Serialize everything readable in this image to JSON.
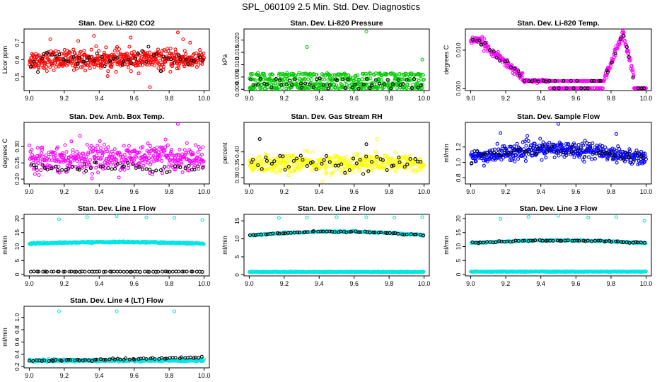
{
  "page_title": "SPL_060109  2.5 Min. Std. Dev. Diagnostics",
  "chart_data": [
    {
      "type": "scatter",
      "title": "Stan. Dev. Li-820 CO2",
      "xlabel": "",
      "ylabel": "Licor ppm",
      "xlim": [
        8.97,
        10.03
      ],
      "ylim": [
        0.42,
        0.78
      ],
      "xticks": [
        "9.0",
        "9.2",
        "9.4",
        "9.6",
        "9.8",
        "10.0"
      ],
      "yticks": [
        "0.5",
        "0.6",
        "0.7"
      ],
      "series": [
        {
          "color": "#ff0000",
          "x_range": [
            9.0,
            10.0
          ],
          "count": 520,
          "profile": "flat",
          "center": 0.6,
          "spread": 0.055,
          "outliers": [
            [
              9.12,
              0.72
            ],
            [
              9.28,
              0.71
            ],
            [
              9.37,
              0.74
            ],
            [
              9.58,
              0.73
            ],
            [
              9.69,
              0.44
            ],
            [
              9.85,
              0.76
            ],
            [
              9.88,
              0.72
            ],
            [
              9.92,
              0.7
            ]
          ]
        },
        {
          "color": "#000000",
          "x_range": [
            9.0,
            10.0
          ],
          "count": 50,
          "profile": "flat",
          "center": 0.6,
          "spread": 0.05,
          "outliers": []
        }
      ]
    },
    {
      "type": "scatter",
      "title": "Stan. Dev. Li-820 Pressure",
      "xlabel": "",
      "ylabel": "kPa",
      "xlim": [
        8.97,
        10.03
      ],
      "ylim": [
        -0.0005,
        0.0245
      ],
      "xticks": [
        "9.0",
        "9.2",
        "9.4",
        "9.6",
        "9.8",
        "10.0"
      ],
      "yticks": [
        "0.000",
        "0.005",
        "0.010",
        "0.015",
        "0.020"
      ],
      "series": [
        {
          "color": "#00cc00",
          "x_range": [
            9.0,
            10.0
          ],
          "count": 480,
          "profile": "levels",
          "levels": [
            0.0005,
            0.002,
            0.004,
            0.006
          ],
          "center": 0.003,
          "spread": 0.002,
          "outliers": [
            [
              9.33,
              0.0172
            ],
            [
              9.67,
              0.0235
            ],
            [
              9.99,
              0.0121
            ]
          ]
        },
        {
          "color": "#000000",
          "x_range": [
            9.0,
            10.0
          ],
          "count": 50,
          "profile": "levels",
          "levels": [
            0.0005,
            0.002,
            0.004
          ],
          "center": 0.002,
          "spread": 0.0015,
          "outliers": []
        }
      ]
    },
    {
      "type": "scatter",
      "title": "Stan. Dev. Li-820 Temp.",
      "xlabel": "",
      "ylabel": "degrees C",
      "xlim": [
        8.97,
        10.03
      ],
      "ylim": [
        -0.0005,
        0.0155
      ],
      "xticks": [
        "9.0",
        "9.2",
        "9.4",
        "9.6",
        "9.8",
        "10.0"
      ],
      "yticks": [
        "0.000",
        "0.010"
      ],
      "series": [
        {
          "color": "#ff00ff",
          "x_range": [
            9.0,
            10.0
          ],
          "count": 420,
          "profile": "temp",
          "center": 0.005,
          "spread": 0.0008,
          "outliers": []
        },
        {
          "color": "#000000",
          "x_range": [
            9.0,
            10.0
          ],
          "count": 50,
          "profile": "temp",
          "center": 0.005,
          "spread": 0.0008,
          "outliers": []
        }
      ]
    },
    {
      "type": "scatter",
      "title": "Stan. Dev. Amb. Box Temp.",
      "xlabel": "",
      "ylabel": "degrees C",
      "xlim": [
        8.97,
        10.03
      ],
      "ylim": [
        0.185,
        0.375
      ],
      "xticks": [
        "9.0",
        "9.2",
        "9.4",
        "9.6",
        "9.8",
        "10.0"
      ],
      "yticks": [
        "0.20",
        "0.25",
        "0.30"
      ],
      "series": [
        {
          "color": "#ff00ff",
          "x_range": [
            9.0,
            10.0
          ],
          "count": 420,
          "profile": "flat",
          "center": 0.265,
          "spread": 0.04,
          "outliers": [
            [
              9.85,
              0.37
            ]
          ]
        },
        {
          "color": "#000000",
          "x_range": [
            9.0,
            10.0
          ],
          "count": 50,
          "profile": "flat",
          "center": 0.235,
          "spread": 0.015,
          "outliers": []
        }
      ]
    },
    {
      "type": "scatter",
      "title": "Stan. Dev. Gas Stream RH",
      "xlabel": "",
      "ylabel": "percent",
      "xlim": [
        8.97,
        10.03
      ],
      "ylim": [
        0.275,
        0.515
      ],
      "xticks": [
        "9.0",
        "9.2",
        "9.4",
        "9.6",
        "9.8",
        "10.0"
      ],
      "yticks": [
        "0.30",
        "0.35",
        "0.40"
      ],
      "series": [
        {
          "color": "#ffff00",
          "x_range": [
            9.0,
            10.0
          ],
          "count": 420,
          "profile": "flat",
          "center": 0.355,
          "spread": 0.035,
          "outliers": [
            [
              9.42,
              0.285
            ],
            [
              9.73,
              0.45
            ]
          ]
        },
        {
          "color": "#000000",
          "x_range": [
            9.0,
            10.0
          ],
          "count": 50,
          "profile": "flat",
          "center": 0.36,
          "spread": 0.035,
          "outliers": [
            [
              9.06,
              0.45
            ],
            [
              9.67,
              0.43
            ]
          ]
        }
      ]
    },
    {
      "type": "scatter",
      "title": "Stan. Dev. Sample Flow",
      "xlabel": "",
      "ylabel": "ml/min",
      "xlim": [
        8.97,
        10.03
      ],
      "ylim": [
        0.72,
        1.52
      ],
      "xticks": [
        "9.0",
        "9.2",
        "9.4",
        "9.6",
        "9.8",
        "10.0"
      ],
      "yticks": [
        "0.8",
        "1.0",
        "1.2"
      ],
      "series": [
        {
          "color": "#0000ff",
          "x_range": [
            9.0,
            10.0
          ],
          "count": 460,
          "profile": "hump",
          "center": 1.05,
          "spread": 0.1,
          "amplitude": 0.12,
          "outliers": [
            [
              9.17,
              1.38
            ],
            [
              9.5,
              1.5
            ],
            [
              9.83,
              1.37
            ]
          ]
        },
        {
          "color": "#000000",
          "x_range": [
            9.0,
            10.0
          ],
          "count": 50,
          "profile": "hump",
          "center": 1.05,
          "spread": 0.08,
          "amplitude": 0.12,
          "outliers": []
        }
      ]
    },
    {
      "type": "scatter",
      "title": "Stan. Dev. Line 1 Flow",
      "xlabel": "",
      "ylabel": "ml/min",
      "xlim": [
        8.97,
        10.03
      ],
      "ylim": [
        -0.5,
        21.5
      ],
      "xticks": [
        "9.0",
        "9.2",
        "9.4",
        "9.6",
        "9.8",
        "10.0"
      ],
      "yticks": [
        "0",
        "5",
        "10",
        "15",
        "20"
      ],
      "series": [
        {
          "color": "#00e5e5",
          "x_range": [
            9.0,
            10.0
          ],
          "count": 380,
          "profile": "hump",
          "center": 11.0,
          "spread": 0.25,
          "amplitude": 0.6,
          "outliers": [
            [
              9.17,
              19.7
            ],
            [
              9.33,
              20.5
            ],
            [
              9.5,
              20.9
            ],
            [
              9.67,
              20.4
            ],
            [
              9.83,
              20.2
            ],
            [
              9.99,
              19.5
            ]
          ]
        },
        {
          "color": "#000000",
          "x_range": [
            9.0,
            10.0
          ],
          "count": 60,
          "profile": "flat",
          "center": 1.0,
          "spread": 0.08,
          "outliers": []
        }
      ]
    },
    {
      "type": "scatter",
      "title": "Stan. Dev. Line 2 Flow",
      "xlabel": "",
      "ylabel": "ml/min",
      "xlim": [
        8.97,
        10.03
      ],
      "ylim": [
        -0.3,
        16.8
      ],
      "xticks": [
        "9.0",
        "9.2",
        "9.4",
        "9.6",
        "9.8",
        "10.0"
      ],
      "yticks": [
        "0",
        "5",
        "10",
        "15"
      ],
      "series": [
        {
          "color": "#00e5e5",
          "x_range": [
            9.0,
            10.0
          ],
          "count": 380,
          "profile": "flat",
          "center": 0.8,
          "spread": 0.1,
          "outliers": [
            [
              9.17,
              15.8
            ],
            [
              9.33,
              15.9
            ],
            [
              9.5,
              16.0
            ],
            [
              9.67,
              16.0
            ],
            [
              9.83,
              15.9
            ],
            [
              9.99,
              16.0
            ]
          ]
        },
        {
          "color": "#00e5e5",
          "x_range": [
            9.0,
            10.0
          ],
          "count": 200,
          "profile": "hump",
          "center": 11.0,
          "spread": 0.2,
          "amplitude": 1.0,
          "outliers": []
        },
        {
          "color": "#000000",
          "x_range": [
            9.0,
            10.0
          ],
          "count": 60,
          "profile": "hump",
          "center": 11.0,
          "spread": 0.2,
          "amplitude": 1.0,
          "outliers": []
        }
      ]
    },
    {
      "type": "scatter",
      "title": "Stan. Dev. Line 3 Flow",
      "xlabel": "",
      "ylabel": "ml/min",
      "xlim": [
        8.97,
        10.03
      ],
      "ylim": [
        -0.5,
        21.5
      ],
      "xticks": [
        "9.0",
        "9.2",
        "9.4",
        "9.6",
        "9.8",
        "10.0"
      ],
      "yticks": [
        "0",
        "5",
        "10",
        "15",
        "20"
      ],
      "series": [
        {
          "color": "#00e5e5",
          "x_range": [
            9.0,
            10.0
          ],
          "count": 380,
          "profile": "flat",
          "center": 1.0,
          "spread": 0.12,
          "outliers": [
            [
              9.17,
              19.9
            ],
            [
              9.33,
              20.6
            ],
            [
              9.5,
              21.0
            ],
            [
              9.67,
              20.4
            ],
            [
              9.83,
              20.5
            ],
            [
              9.99,
              19.2
            ]
          ]
        },
        {
          "color": "#00e5e5",
          "x_range": [
            9.0,
            10.0
          ],
          "count": 200,
          "profile": "hump",
          "center": 11.2,
          "spread": 0.25,
          "amplitude": 1.0,
          "outliers": []
        },
        {
          "color": "#000000",
          "x_range": [
            9.0,
            10.0
          ],
          "count": 60,
          "profile": "hump",
          "center": 11.2,
          "spread": 0.25,
          "amplitude": 1.0,
          "outliers": []
        }
      ]
    },
    {
      "type": "scatter",
      "title": "Stan. Dev. Line 4 (LT) Flow",
      "xlabel": "",
      "ylabel": "ml/min",
      "xlim": [
        8.97,
        10.03
      ],
      "ylim": [
        0.18,
        1.18
      ],
      "xticks": [
        "9.0",
        "9.2",
        "9.4",
        "9.6",
        "9.8",
        "10.0"
      ],
      "yticks": [
        "0.2",
        "0.4",
        "0.6",
        "0.8",
        "1.0"
      ],
      "series": [
        {
          "color": "#00e5e5",
          "x_range": [
            9.0,
            10.0
          ],
          "count": 380,
          "profile": "flat",
          "center": 0.3,
          "spread": 0.02,
          "outliers": [
            [
              9.17,
              1.1
            ],
            [
              9.5,
              1.1
            ],
            [
              9.83,
              1.1
            ]
          ]
        },
        {
          "color": "#000000",
          "x_range": [
            9.0,
            10.0
          ],
          "count": 60,
          "profile": "rising",
          "center": 0.3,
          "spread": 0.015,
          "amplitude": 0.06,
          "outliers": []
        }
      ]
    }
  ]
}
